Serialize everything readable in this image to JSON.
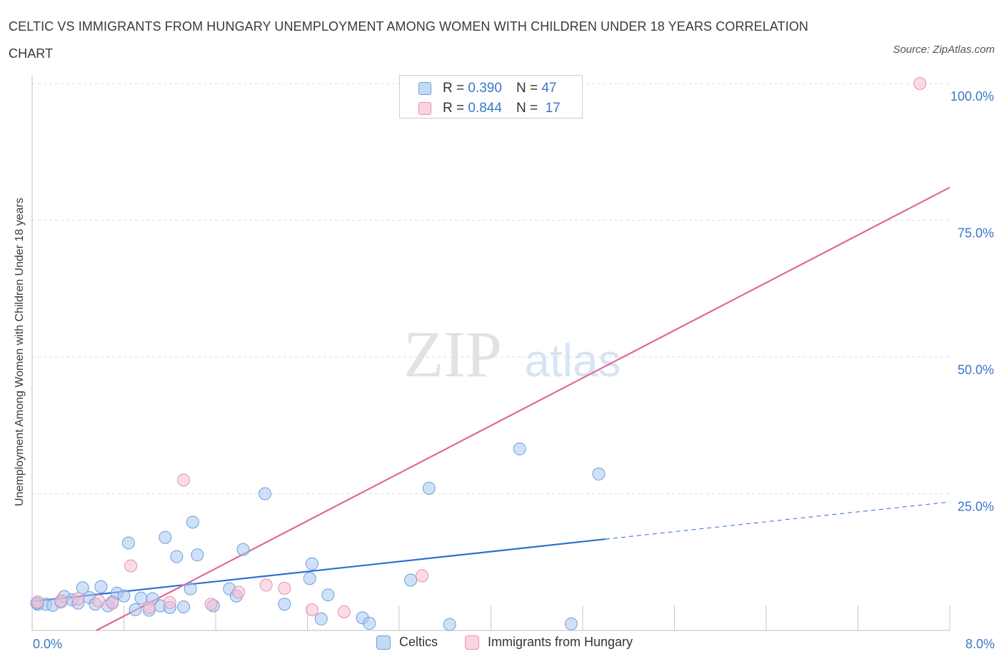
{
  "title": "CELTIC VS IMMIGRANTS FROM HUNGARY UNEMPLOYMENT AMONG WOMEN WITH CHILDREN UNDER 18 YEARS CORRELATION CHART",
  "source": "Source: ZipAtlas.com",
  "watermark": {
    "zip": "ZIP",
    "atlas": "atlas"
  },
  "legend": {
    "r_label": "R =",
    "n_label": "N =",
    "rows": [
      {
        "r": "0.390",
        "n": "47",
        "color": "#a9c8f0",
        "border": "#6a9fe0"
      },
      {
        "r": "0.844",
        "n": "17",
        "color": "#f7c0d2",
        "border": "#e890b0"
      }
    ]
  },
  "bottom_legend": {
    "celtics": "Celtics",
    "hungary": "Immigrants from Hungary"
  },
  "chart_data": {
    "type": "scatter",
    "title": "CELTIC VS IMMIGRANTS FROM HUNGARY UNEMPLOYMENT AMONG WOMEN WITH CHILDREN UNDER 18 YEARS CORRELATION CHART",
    "xlabel": "",
    "ylabel": "Unemployment Among Women with Children Under 18 years",
    "xlim": [
      0,
      8
    ],
    "ylim": [
      0,
      100
    ],
    "x_tick_labels": {
      "min": "0.0%",
      "max": "8.0%"
    },
    "y_ticks": [
      {
        "value": 25,
        "label": "25.0%"
      },
      {
        "value": 50,
        "label": "50.0%"
      },
      {
        "value": 75,
        "label": "75.0%"
      },
      {
        "value": 100,
        "label": "100.0%"
      }
    ],
    "series": [
      {
        "name": "Celtics",
        "color": "#a9c8f0",
        "stroke": "#6a9fe0",
        "line_color": "#2f6fd0",
        "points": [
          [
            0.05,
            4.8
          ],
          [
            0.12,
            4.8
          ],
          [
            0.18,
            4.6
          ],
          [
            0.25,
            5.2
          ],
          [
            0.28,
            6.2
          ],
          [
            0.35,
            5.6
          ],
          [
            0.4,
            5.0
          ],
          [
            0.44,
            7.8
          ],
          [
            0.5,
            6.0
          ],
          [
            0.55,
            4.8
          ],
          [
            0.6,
            8.0
          ],
          [
            0.66,
            4.5
          ],
          [
            0.7,
            5.2
          ],
          [
            0.74,
            6.8
          ],
          [
            0.8,
            6.3
          ],
          [
            0.84,
            16.0
          ],
          [
            0.9,
            3.8
          ],
          [
            0.95,
            5.9
          ],
          [
            1.02,
            3.7
          ],
          [
            1.05,
            5.8
          ],
          [
            1.12,
            4.5
          ],
          [
            1.16,
            17.0
          ],
          [
            1.2,
            4.2
          ],
          [
            1.26,
            13.5
          ],
          [
            1.32,
            4.3
          ],
          [
            1.38,
            7.6
          ],
          [
            1.4,
            19.8
          ],
          [
            1.44,
            13.8
          ],
          [
            1.58,
            4.5
          ],
          [
            1.72,
            7.6
          ],
          [
            1.78,
            6.3
          ],
          [
            1.84,
            14.8
          ],
          [
            2.03,
            25.0
          ],
          [
            2.2,
            4.8
          ],
          [
            2.42,
            9.5
          ],
          [
            2.44,
            12.2
          ],
          [
            2.52,
            2.1
          ],
          [
            2.58,
            6.5
          ],
          [
            2.88,
            2.3
          ],
          [
            2.94,
            1.3
          ],
          [
            3.3,
            9.2
          ],
          [
            3.46,
            26.0
          ],
          [
            3.64,
            1.1
          ],
          [
            4.25,
            33.2
          ],
          [
            4.7,
            1.2
          ],
          [
            4.94,
            28.6
          ],
          [
            0.04,
            5.0
          ]
        ],
        "trend": {
          "x1": 0.0,
          "y1": 5.3,
          "x2": 5.0,
          "y2": 16.7,
          "dash_to_x": 8.0,
          "dash_to_y": 23.5
        }
      },
      {
        "name": "Immigrants from Hungary",
        "color": "#f7c0d2",
        "stroke": "#e890b0",
        "line_color": "#e06898",
        "points": [
          [
            0.05,
            5.2
          ],
          [
            0.25,
            5.4
          ],
          [
            0.4,
            5.8
          ],
          [
            0.58,
            5.4
          ],
          [
            0.7,
            5.0
          ],
          [
            0.86,
            11.8
          ],
          [
            1.02,
            4.2
          ],
          [
            1.2,
            5.1
          ],
          [
            1.32,
            27.5
          ],
          [
            1.56,
            4.8
          ],
          [
            1.8,
            7.0
          ],
          [
            2.04,
            8.3
          ],
          [
            2.2,
            7.7
          ],
          [
            2.44,
            3.8
          ],
          [
            2.72,
            3.4
          ],
          [
            3.4,
            10.0
          ],
          [
            7.74,
            100.0
          ]
        ],
        "trend": {
          "x1": 0.56,
          "y1": 0.0,
          "x2": 8.0,
          "y2": 81.0
        }
      }
    ]
  }
}
